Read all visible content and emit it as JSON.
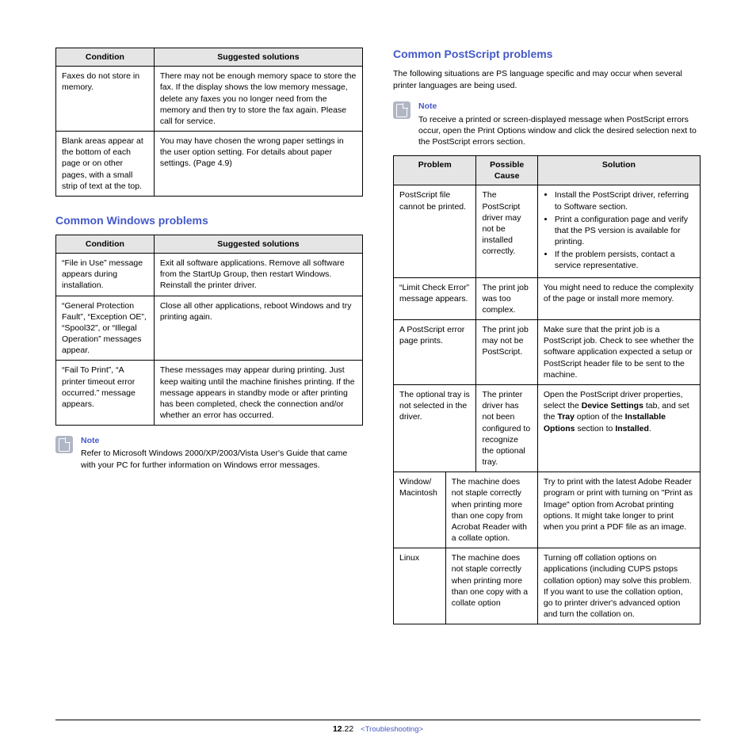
{
  "left": {
    "table1": {
      "headers": [
        "Condition",
        "Suggested solutions"
      ],
      "col_widths": [
        "32%",
        "68%"
      ],
      "rows": [
        [
          "Faxes do not store in memory.",
          "There may not be enough memory space to store the fax. If the display shows the low memory message, delete any faxes you no longer need from the memory and then try to store the fax again. Please call for service."
        ],
        [
          "Blank areas appear at the bottom of each page or on other pages, with a small strip of text at the top.",
          "You may have chosen the wrong paper settings in the user option setting. For details about paper settings. (Page 4.9)"
        ]
      ]
    },
    "heading_windows": "Common Windows problems",
    "table2": {
      "headers": [
        "Condition",
        "Suggested solutions"
      ],
      "col_widths": [
        "32%",
        "68%"
      ],
      "rows": [
        [
          "“File in Use” message appears during installation.",
          "Exit all software applications. Remove all software from the StartUp Group, then restart Windows. Reinstall the printer driver."
        ],
        [
          "“General Protection Fault”, “Exception OE”, “Spool32”, or “Illegal Operation” messages appear.",
          "Close all other applications, reboot Windows and try printing again."
        ],
        [
          "“Fail To Print”, “A printer timeout error occurred.” message appears.",
          "These messages may appear during printing. Just keep waiting until the machine finishes printing. If the message appears in standby mode or after printing has been completed, check the connection and/or whether an error has occurred."
        ]
      ]
    },
    "note": {
      "label": "Note",
      "text": "Refer to Microsoft Windows 2000/XP/2003/Vista User's Guide that came with your PC for further information on Windows error messages."
    }
  },
  "right": {
    "heading_ps": "Common PostScript problems",
    "intro": "The following situations are PS language specific and may occur when several printer languages are being used.",
    "note": {
      "label": "Note",
      "text": "To receive a printed or screen-displayed message when PostScript errors occur, open the Print Options window and click the desired selection next to the PostScript errors section."
    },
    "table3": {
      "headers": [
        "Problem",
        "Possible Cause",
        "Solution"
      ],
      "rows": {
        "r1": {
          "problem": "PostScript file cannot be printed.",
          "cause": "The PostScript driver may not be installed correctly.",
          "solution_items": [
            "Install the PostScript driver, referring to Software section.",
            "Print a configuration page and verify that the PS version is available for printing.",
            "If the problem persists, contact a service representative."
          ]
        },
        "r2": {
          "problem": "“Limit Check Error” message appears.",
          "cause": "The print job was too complex.",
          "solution": "You might need to reduce the complexity of the page or install more memory."
        },
        "r3": {
          "problem": "A PostScript error page prints.",
          "cause": "The print job may not be PostScript.",
          "solution": "Make sure that the print job is a PostScript job. Check to see whether the software application expected a setup or PostScript header file to be sent to the machine."
        },
        "r4": {
          "problem": "The optional tray is not selected in the driver.",
          "cause": "The printer driver has not been configured to recognize the optional tray.",
          "solution_html": "Open the PostScript driver properties, select the <b>Device Settings</b> tab, and set the <b>Tray</b> option of the <b>Installable Options</b> section to <b>Installed</b>."
        },
        "r5": {
          "problem": "Window/ Macintosh",
          "cause": "The machine does not staple correctly when printing more than one copy from Acrobat Reader with a collate option.",
          "solution": "Try to print with the latest Adobe Reader program or print with turning on \"Print as Image\" option from Acrobat printing options. It might take longer to print when you print a PDF file as an image."
        },
        "r6": {
          "problem": "Linux",
          "cause": "The machine does not staple correctly when printing more than one copy with a collate option",
          "solution": "Turning off collation options on applications (including CUPS pstops collation option) may solve this problem. If you want to use the collation option, go to printer driver's advanced option and turn the collation on."
        }
      }
    }
  },
  "footer": {
    "page_major": "12",
    "page_minor": ".22",
    "section": "<Troubleshooting>"
  }
}
